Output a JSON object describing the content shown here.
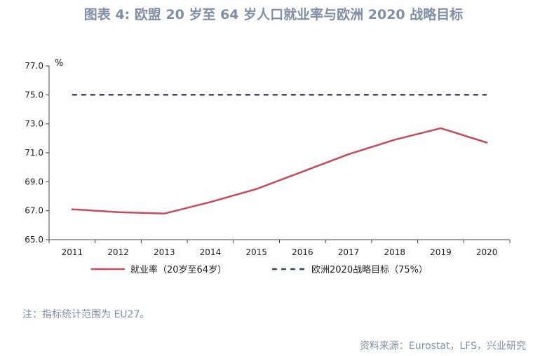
{
  "title": "图表 4: 欧盟 20 岁至 64 岁人口就业率与欧洲 2020 战略目标",
  "note": "注：指标统计范围为 EU27。",
  "source": "资料来源：Eurostat，LFS，兴业研究",
  "chart_data": {
    "type": "line",
    "x": [
      "2011",
      "2012",
      "2013",
      "2014",
      "2015",
      "2016",
      "2017",
      "2018",
      "2019",
      "2020"
    ],
    "unit": "%",
    "ylim": [
      65.0,
      77.0
    ],
    "yticks": [
      "65.0",
      "67.0",
      "69.0",
      "71.0",
      "73.0",
      "75.0",
      "77.0"
    ],
    "grid": false,
    "legend_position": "bottom",
    "series": [
      {
        "name": "就业率（20岁至64岁）",
        "color": "#c8485a",
        "style": "solid",
        "values": [
          67.1,
          66.9,
          66.8,
          67.6,
          68.5,
          69.7,
          70.9,
          71.9,
          72.7,
          71.7
        ]
      },
      {
        "name": "欧洲2020战略目标（75%）",
        "color": "#3b4a66",
        "style": "dashed",
        "values": [
          75.0,
          75.0,
          75.0,
          75.0,
          75.0,
          75.0,
          75.0,
          75.0,
          75.0,
          75.0
        ]
      }
    ]
  }
}
